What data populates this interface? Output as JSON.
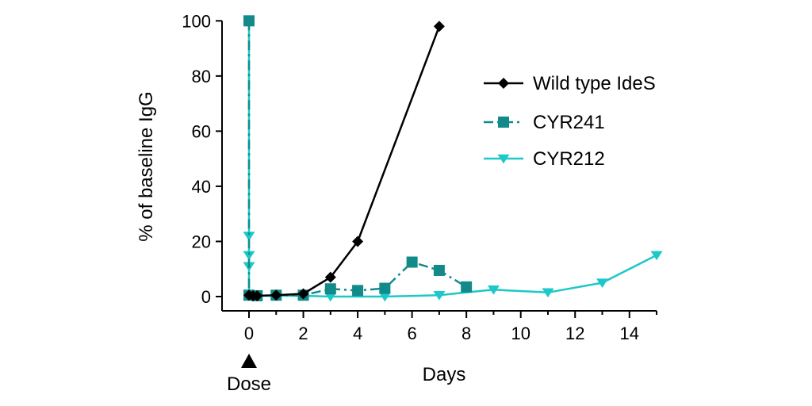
{
  "chart_data": {
    "type": "line",
    "title": "",
    "xlabel": "Days",
    "ylabel": "% of baseline IgG",
    "xlim": [
      -1,
      15
    ],
    "ylim": [
      -5,
      100
    ],
    "x_ticks": [
      0,
      2,
      4,
      6,
      8,
      10,
      12,
      14
    ],
    "y_ticks": [
      0,
      20,
      40,
      60,
      80,
      100
    ],
    "dose_annotation": {
      "label": "Dose",
      "x": 0
    },
    "legend_position": "right",
    "series": [
      {
        "name": "Wild type IdeS",
        "color": "#000000",
        "marker": "diamond",
        "line_style": "solid",
        "x": [
          0,
          0.15,
          0.3,
          1,
          2,
          3,
          4,
          7
        ],
        "y": [
          0.5,
          0.3,
          0.3,
          0.5,
          1.0,
          7.0,
          20.0,
          98.0
        ]
      },
      {
        "name": "CYR241",
        "color": "#138a8a",
        "marker": "square",
        "line_style": "dashdot",
        "x": [
          0,
          0,
          0.3,
          1,
          2,
          3,
          4,
          5,
          6,
          7,
          8
        ],
        "y": [
          100,
          0.5,
          0.3,
          0.5,
          0.5,
          2.8,
          2.2,
          3.0,
          12.5,
          9.5,
          3.5
        ]
      },
      {
        "name": "CYR212",
        "color": "#1cc8c8",
        "marker": "triangle-down",
        "line_style": "solid",
        "x": [
          0,
          0,
          0,
          0,
          0,
          0.3,
          1,
          2,
          3,
          5,
          7,
          9,
          11,
          13,
          15
        ],
        "y": [
          100,
          22,
          15,
          11,
          0.5,
          0.3,
          0.3,
          0.3,
          0.0,
          0.0,
          0.5,
          2.5,
          1.5,
          5.0,
          15.0
        ]
      }
    ]
  }
}
